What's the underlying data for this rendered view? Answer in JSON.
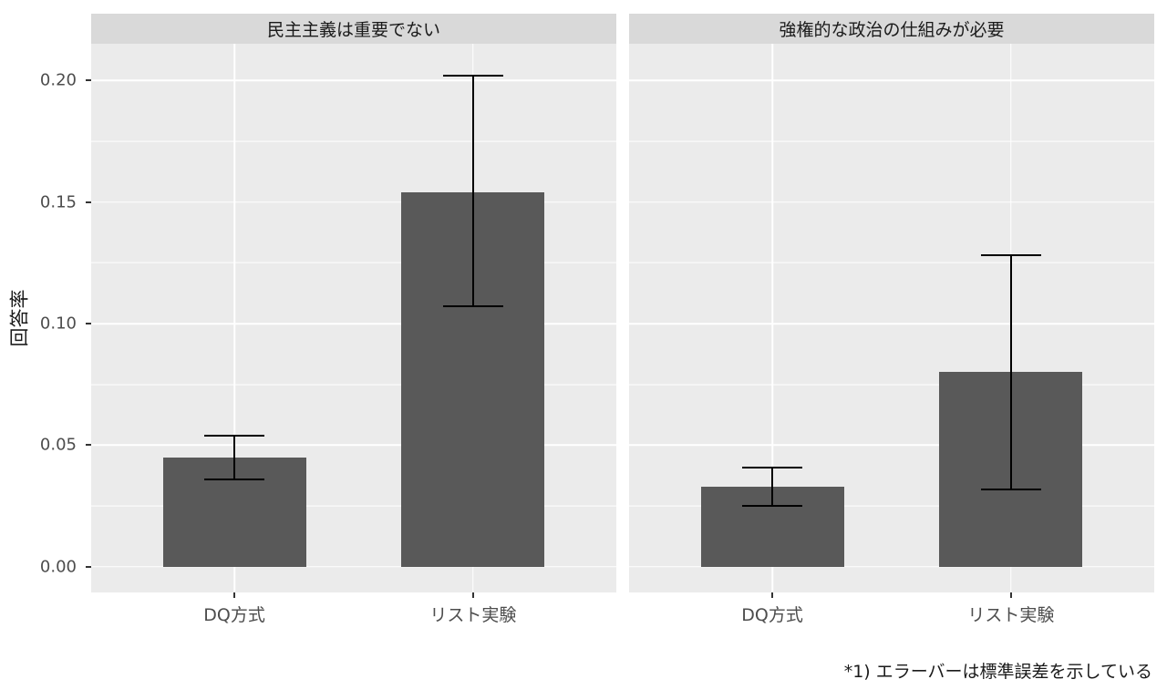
{
  "chart_data": {
    "type": "bar",
    "title": "",
    "ylabel": "回答率",
    "xlabel": "",
    "caption": "*1) エラーバーは標準誤差を示している",
    "legend": "none",
    "grid": "on",
    "categories": [
      "DQ方式",
      "リスト実験"
    ],
    "yticks_labels": [
      "0.00",
      "0.05",
      "0.10",
      "0.15",
      "0.20"
    ],
    "yticks_values": [
      0,
      0.05,
      0.1,
      0.15,
      0.2
    ],
    "yminor_values": [
      0.025,
      0.075,
      0.125,
      0.175
    ],
    "ylim": [
      -0.0105,
      0.215
    ],
    "facets": [
      {
        "title": "民主主義は重要でない",
        "series": [
          {
            "category": "DQ方式",
            "value": 0.045,
            "error_low": 0.036,
            "error_high": 0.054
          },
          {
            "category": "リスト実験",
            "value": 0.154,
            "error_low": 0.107,
            "error_high": 0.202
          }
        ]
      },
      {
        "title": "強権的な政治の仕組みが必要",
        "series": [
          {
            "category": "DQ方式",
            "value": 0.033,
            "error_low": 0.025,
            "error_high": 0.041
          },
          {
            "category": "リスト実験",
            "value": 0.08,
            "error_low": 0.032,
            "error_high": 0.128
          }
        ]
      }
    ],
    "colors": {
      "bar": "#595959",
      "panel_bg": "#EBEBEB",
      "strip_bg": "#D9D9D9",
      "grid": "#FFFFFF",
      "errorbar": "#000000",
      "tick_text": "#4D4D4D",
      "text": "#1A1A1A"
    }
  }
}
